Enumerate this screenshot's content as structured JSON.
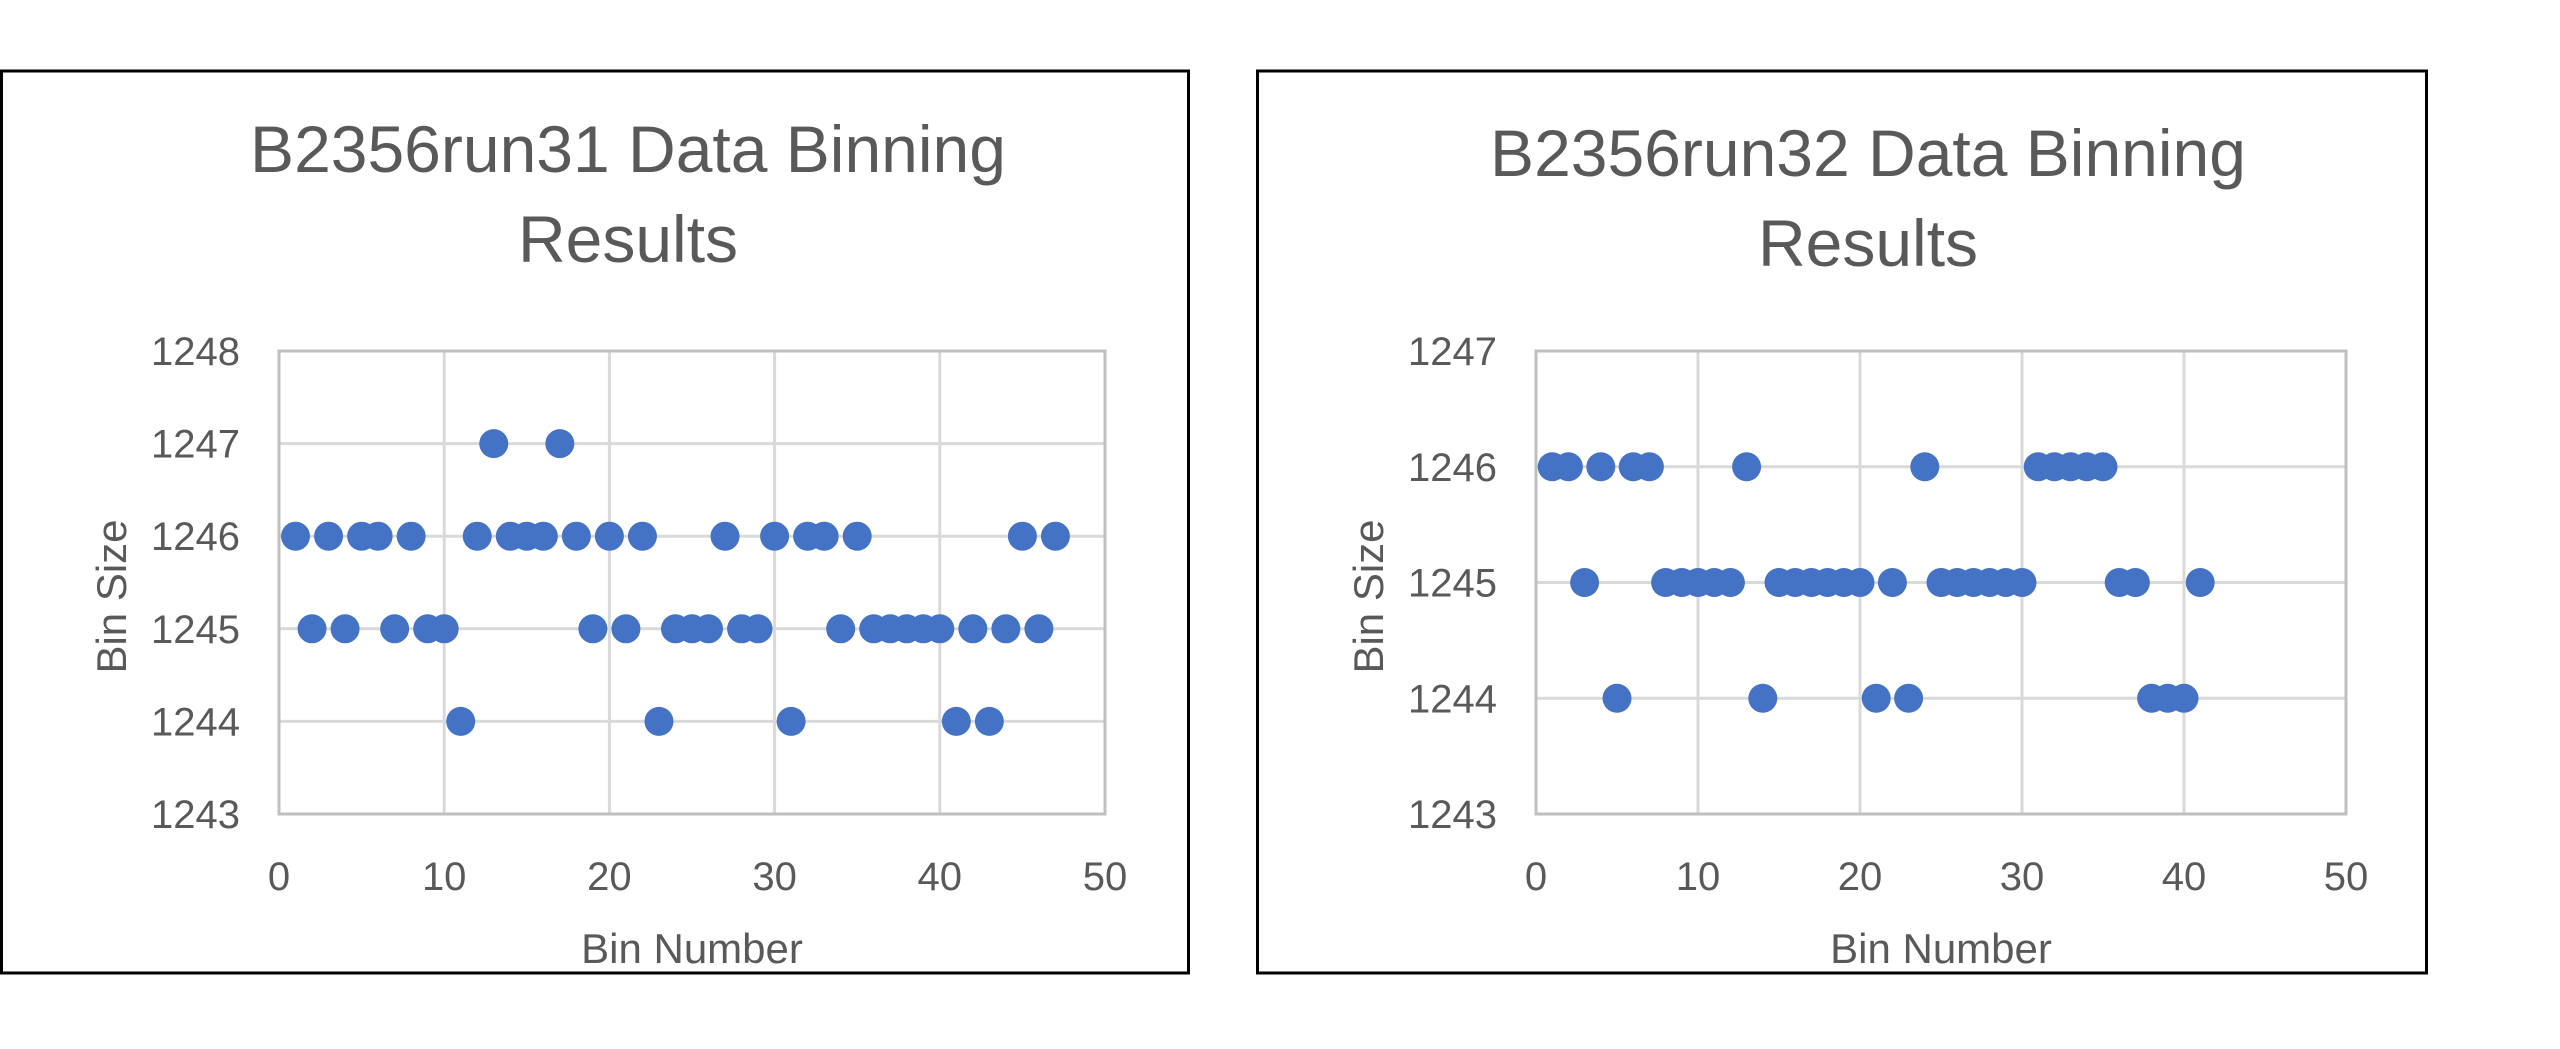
{
  "chart_data": [
    {
      "type": "scatter",
      "title": "B2356run31 Data Binning Results",
      "title_lines": [
        "B2356run31 Data Binning",
        "Results"
      ],
      "xlabel": "Bin Number",
      "ylabel": "Bin Size",
      "xlim": [
        0,
        50
      ],
      "ylim": [
        1243,
        1248
      ],
      "xticks": [
        0,
        10,
        20,
        30,
        40,
        50
      ],
      "yticks": [
        1243,
        1244,
        1245,
        1246,
        1247,
        1248
      ],
      "grid": true,
      "color": "#4472c4",
      "series": [
        {
          "x": [
            1,
            2,
            3,
            4,
            5,
            6,
            7,
            8,
            9,
            10,
            11,
            12,
            13,
            14,
            15,
            16,
            17,
            18,
            19,
            20,
            21,
            22,
            23,
            24,
            25,
            26,
            27,
            28,
            29,
            30,
            31,
            32,
            33,
            34,
            35,
            36,
            37,
            38,
            39,
            40,
            41,
            42,
            43,
            44,
            45,
            46,
            47
          ],
          "y": [
            1246,
            1245,
            1246,
            1245,
            1246,
            1246,
            1245,
            1246,
            1245,
            1245,
            1244,
            1246,
            1247,
            1246,
            1246,
            1246,
            1247,
            1246,
            1245,
            1246,
            1245,
            1246,
            1244,
            1245,
            1245,
            1245,
            1246,
            1245,
            1245,
            1246,
            1244,
            1246,
            1246,
            1245,
            1246,
            1245,
            1245,
            1245,
            1245,
            1245,
            1244,
            1245,
            1244,
            1245,
            1246,
            1245,
            1246
          ]
        }
      ]
    },
    {
      "type": "scatter",
      "title": "B2356run32 Data Binning Results",
      "title_lines": [
        "B2356run32 Data Binning",
        "Results"
      ],
      "xlabel": "Bin Number",
      "ylabel": "Bin Size",
      "xlim": [
        0,
        50
      ],
      "ylim": [
        1243,
        1247
      ],
      "xticks": [
        0,
        10,
        20,
        30,
        40,
        50
      ],
      "yticks": [
        1243,
        1244,
        1245,
        1246,
        1247
      ],
      "grid": true,
      "color": "#4472c4",
      "series": [
        {
          "x": [
            1,
            2,
            3,
            4,
            5,
            6,
            7,
            8,
            9,
            10,
            11,
            12,
            13,
            14,
            15,
            16,
            17,
            18,
            19,
            20,
            21,
            22,
            23,
            24,
            25,
            26,
            27,
            28,
            29,
            30,
            31,
            32,
            33,
            34,
            35,
            36,
            37,
            38,
            39,
            40,
            41
          ],
          "y": [
            1246,
            1246,
            1245,
            1246,
            1244,
            1246,
            1246,
            1245,
            1245,
            1245,
            1245,
            1245,
            1246,
            1244,
            1245,
            1245,
            1245,
            1245,
            1245,
            1245,
            1244,
            1245,
            1244,
            1246,
            1245,
            1245,
            1245,
            1245,
            1245,
            1245,
            1246,
            1246,
            1246,
            1246,
            1246,
            1245,
            1245,
            1244,
            1244,
            1244,
            1245
          ]
        }
      ]
    }
  ]
}
